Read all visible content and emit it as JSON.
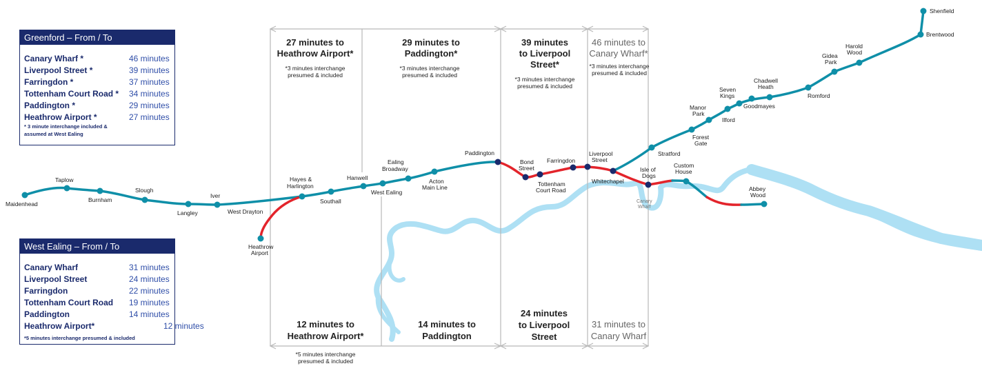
{
  "greenford_panel": {
    "title": "Greenford  – From / To",
    "rows": [
      {
        "station": "Canary Wharf *",
        "time": "46 minutes"
      },
      {
        "station": "Liverpool Street *",
        "time": "39 minutes"
      },
      {
        "station": "Farringdon *",
        "time": "37 minutes"
      },
      {
        "station": "Tottenham Court Road *",
        "time": "34 minutes"
      },
      {
        "station": "Paddington *",
        "time": "29 minutes"
      },
      {
        "station": "Heathrow Airport *",
        "time": "27 minutes"
      }
    ],
    "note_line1": "* 3 minute interchange included &",
    "note_line2": "assumed at West Ealing"
  },
  "west_ealing_panel": {
    "title": "West Ealing – From / To",
    "rows": [
      {
        "station": "Canary Wharf",
        "time": "31 minutes"
      },
      {
        "station": "Liverpool Street",
        "time": "24 minutes"
      },
      {
        "station": "Farringdon",
        "time": "22 minutes"
      },
      {
        "station": "Tottenham Court Road",
        "time": "19 minutes"
      },
      {
        "station": "Paddington",
        "time": "14 minutes"
      },
      {
        "station": "Heathrow Airport*",
        "time": "12 minutes"
      }
    ],
    "note": "*5 minutes interchange presumed & included"
  },
  "top_times": {
    "heathrow": {
      "line1": "27 minutes to",
      "line2": "Heathrow Airport*",
      "note1": "*3 minutes interchange",
      "note2": "presumed & included"
    },
    "paddington": {
      "line1": "29 minutes to",
      "line2": "Paddington*",
      "note1": "*3 minutes interchange",
      "note2": "presumed & included"
    },
    "liverpool": {
      "line1": "39 minutes",
      "line2": "to Liverpool",
      "line3": "Street*",
      "note1": "*3 minutes interchange",
      "note2": "presumed & included"
    },
    "canary": {
      "line1": "46 minutes to",
      "line2": "Canary Wharf*",
      "note1": "*3 minutes interchange",
      "note2": "presumed & included"
    }
  },
  "bottom_times": {
    "heathrow": {
      "line1": "12 minutes to",
      "line2": "Heathrow Airport*",
      "note1": "*5 minutes interchange",
      "note2": "presumed & included"
    },
    "paddington": {
      "line1": "14 minutes to",
      "line2": "Paddington"
    },
    "liverpool": {
      "line1": "24 minutes",
      "line2": "to Liverpool",
      "line3": "Street"
    },
    "canary": {
      "line1": "31 minutes to",
      "line2": "Canary Wharf"
    }
  },
  "stations": {
    "maidenhead": "Maidenhead",
    "taplow": "Taplow",
    "burnham": "Burnham",
    "slough": "Slough",
    "langley": "Langley",
    "iver": "Iver",
    "west_drayton": "West Drayton",
    "hayes_1": "Hayes &",
    "hayes_2": "Harlington",
    "heathrow_1": "Heathrow",
    "heathrow_2": "Airport",
    "southall": "Southall",
    "hanwell": "Hanwell",
    "west_ealing": "West Ealing",
    "ealing_1": "Ealing",
    "ealing_2": "Broadway",
    "acton_1": "Acton",
    "acton_2": "Main Line",
    "paddington": "Paddington",
    "bond_1": "Bond",
    "bond_2": "Street",
    "tcr_1": "Tottenham",
    "tcr_2": "Court Road",
    "farringdon": "Farringdon",
    "liverpool_1": "Liverpool",
    "liverpool_2": "Street",
    "whitechapel": "Whitechapel",
    "isle_1": "Isle of",
    "isle_2": "Dogs",
    "canary_1": "Canary",
    "canary_2": "Wharf",
    "custom_1": "Custom",
    "custom_2": "House",
    "abbey_1": "Abbey",
    "abbey_2": "Wood",
    "stratford": "Stratford",
    "forest_1": "Forest",
    "forest_2": "Gate",
    "manor_1": "Manor",
    "manor_2": "Park",
    "ilford": "Ilford",
    "seven_1": "Seven",
    "seven_2": "Kings",
    "goodmayes": "Goodmayes",
    "chadwell_1": "Chadwell",
    "chadwell_2": "Heath",
    "romford": "Romford",
    "gidea_1": "Gidea",
    "gidea_2": "Park",
    "harold_1": "Harold",
    "harold_2": "Wood",
    "brentwood": "Brentwood",
    "shenfield": "Shenfield"
  },
  "colors": {
    "line_teal": "#0f8fa8",
    "line_red": "#e3242b",
    "river": "#aee0f4",
    "panel_navy": "#1a2a6c",
    "station_navy": "#1a2a6c",
    "zone_line": "#b8b8b8"
  }
}
